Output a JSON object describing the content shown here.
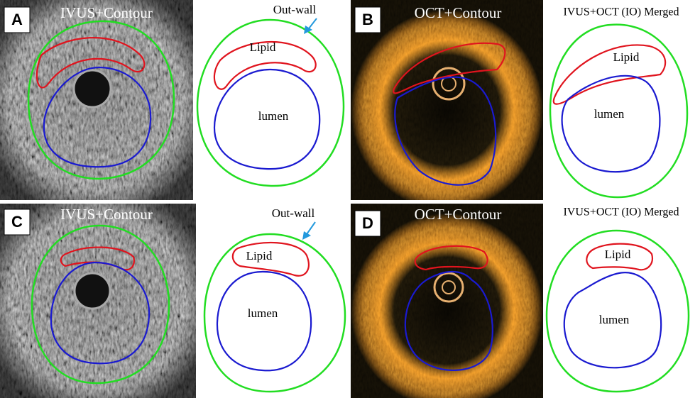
{
  "panels": [
    {
      "letter": "A",
      "image_title": "IVUS+Contour",
      "diagram": {
        "annotation": "Out-wall",
        "labels": [
          "Lipid",
          "lumen"
        ]
      }
    },
    {
      "letter": "B",
      "image_title": "OCT+Contour",
      "diagram": {
        "title": "IVUS+OCT (IO) Merged",
        "labels": [
          "Lipid",
          "lumen"
        ]
      }
    },
    {
      "letter": "C",
      "image_title": "IVUS+Contour",
      "diagram": {
        "annotation": "Out-wall",
        "labels": [
          "Lipid",
          "lumen"
        ]
      }
    },
    {
      "letter": "D",
      "image_title": "OCT+Contour",
      "diagram": {
        "title": "IVUS+OCT (IO) Merged",
        "labels": [
          "Lipid",
          "lumen"
        ]
      }
    }
  ]
}
